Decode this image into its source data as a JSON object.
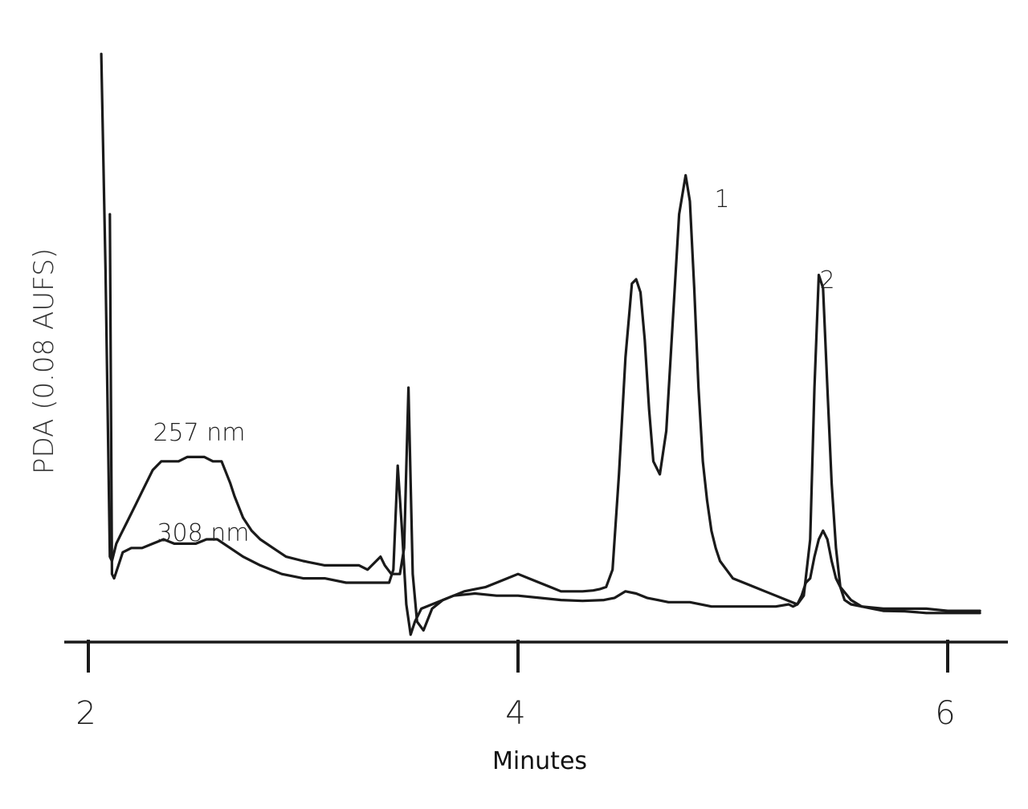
{
  "chart_data": {
    "type": "line",
    "title": "",
    "xlabel": "Minutes",
    "ylabel": "PDA  (0.08 AUFS)",
    "xlim": [
      1.95,
      6.2
    ],
    "ylim": [
      -0.06,
      1.38
    ],
    "grid": false,
    "legend": "none",
    "x_ticks": [
      2,
      4,
      6
    ],
    "x_tick_labels": [
      "2",
      "4",
      "6"
    ],
    "colors": {
      "trace": "#1a1a1a",
      "axis": "#1a1a1a"
    },
    "annotations": [
      {
        "text": "257 nm",
        "x": 2.75,
        "y": 0.45
      },
      {
        "text": "308 nm",
        "x": 2.75,
        "y": 0.235
      },
      {
        "text": "1",
        "x": 4.93,
        "y": 1.015
      },
      {
        "text": "2",
        "x": 5.45,
        "y": 0.79
      }
    ],
    "series": [
      {
        "label": "257 nm",
        "x": [
          2.06,
          2.08,
          2.1,
          2.11,
          2.13,
          2.15,
          2.18,
          2.22,
          2.26,
          2.3,
          2.34,
          2.38,
          2.42,
          2.46,
          2.5,
          2.54,
          2.58,
          2.62,
          2.66,
          2.68,
          2.72,
          2.76,
          2.8,
          2.86,
          2.92,
          3.0,
          3.1,
          3.18,
          3.26,
          3.3,
          3.36,
          3.38,
          3.41,
          3.43,
          3.45,
          3.47,
          3.49,
          3.51,
          3.53,
          3.56,
          3.6,
          3.65,
          3.7,
          3.75,
          3.8,
          3.85,
          3.9,
          3.95,
          4.0,
          4.05,
          4.1,
          4.15,
          4.2,
          4.25,
          4.3,
          4.35,
          4.38,
          4.41,
          4.44,
          4.47,
          4.5,
          4.53,
          4.55,
          4.57,
          4.59,
          4.61,
          4.63,
          4.66,
          4.69,
          4.72,
          4.75,
          4.78,
          4.8,
          4.82,
          4.84,
          4.86,
          4.88,
          4.9,
          4.92,
          4.94,
          4.97,
          5.0,
          5.05,
          5.1,
          5.15,
          5.2,
          5.25,
          5.3,
          5.33,
          5.36,
          5.38,
          5.4,
          5.42,
          5.44,
          5.46,
          5.48,
          5.5,
          5.52,
          5.55,
          5.6,
          5.65,
          5.7,
          5.8,
          5.9,
          6.0,
          6.1,
          6.15
        ],
        "y": [
          1.32,
          0.82,
          0.16,
          0.15,
          0.19,
          0.21,
          0.24,
          0.28,
          0.32,
          0.36,
          0.38,
          0.38,
          0.38,
          0.39,
          0.39,
          0.39,
          0.38,
          0.38,
          0.33,
          0.3,
          0.25,
          0.22,
          0.2,
          0.18,
          0.16,
          0.15,
          0.14,
          0.14,
          0.14,
          0.13,
          0.16,
          0.14,
          0.12,
          0.12,
          0.12,
          0.18,
          0.55,
          0.12,
          0.01,
          -0.01,
          0.04,
          0.06,
          0.07,
          0.08,
          0.085,
          0.09,
          0.1,
          0.11,
          0.12,
          0.11,
          0.1,
          0.09,
          0.08,
          0.08,
          0.08,
          0.082,
          0.085,
          0.09,
          0.13,
          0.35,
          0.62,
          0.79,
          0.8,
          0.77,
          0.66,
          0.5,
          0.38,
          0.35,
          0.45,
          0.7,
          0.95,
          1.04,
          0.98,
          0.78,
          0.55,
          0.38,
          0.29,
          0.22,
          0.18,
          0.15,
          0.13,
          0.11,
          0.1,
          0.09,
          0.08,
          0.07,
          0.06,
          0.05,
          0.07,
          0.2,
          0.55,
          0.81,
          0.78,
          0.55,
          0.33,
          0.18,
          0.09,
          0.06,
          0.05,
          0.045,
          0.04,
          0.035,
          0.034,
          0.03,
          0.03,
          0.03,
          0.03
        ]
      },
      {
        "label": "308 nm",
        "x": [
          2.1,
          2.11,
          2.12,
          2.14,
          2.16,
          2.2,
          2.25,
          2.3,
          2.35,
          2.4,
          2.45,
          2.5,
          2.55,
          2.6,
          2.66,
          2.72,
          2.8,
          2.9,
          3.0,
          3.1,
          3.2,
          3.3,
          3.38,
          3.4,
          3.42,
          3.44,
          3.46,
          3.48,
          3.5,
          3.52,
          3.55,
          3.6,
          3.65,
          3.7,
          3.8,
          3.9,
          4.0,
          4.1,
          4.2,
          4.3,
          4.4,
          4.45,
          4.5,
          4.55,
          4.6,
          4.65,
          4.7,
          4.8,
          4.9,
          5.0,
          5.1,
          5.2,
          5.26,
          5.28,
          5.3,
          5.32,
          5.34,
          5.36,
          5.38,
          5.4,
          5.42,
          5.44,
          5.46,
          5.48,
          5.5,
          5.55,
          5.6,
          5.7,
          5.8,
          5.9,
          6.0,
          6.1,
          6.15
        ],
        "y": [
          0.95,
          0.12,
          0.11,
          0.14,
          0.17,
          0.18,
          0.18,
          0.19,
          0.2,
          0.19,
          0.19,
          0.19,
          0.2,
          0.2,
          0.18,
          0.16,
          0.14,
          0.12,
          0.11,
          0.11,
          0.1,
          0.1,
          0.1,
          0.1,
          0.13,
          0.37,
          0.22,
          0.05,
          -0.02,
          0.01,
          0.04,
          0.05,
          0.06,
          0.07,
          0.075,
          0.07,
          0.07,
          0.065,
          0.06,
          0.058,
          0.06,
          0.065,
          0.08,
          0.075,
          0.065,
          0.06,
          0.055,
          0.055,
          0.045,
          0.045,
          0.045,
          0.045,
          0.05,
          0.045,
          0.05,
          0.07,
          0.1,
          0.11,
          0.16,
          0.2,
          0.22,
          0.2,
          0.15,
          0.11,
          0.09,
          0.06,
          0.045,
          0.04,
          0.04,
          0.04,
          0.035,
          0.035,
          0.035
        ]
      }
    ]
  }
}
